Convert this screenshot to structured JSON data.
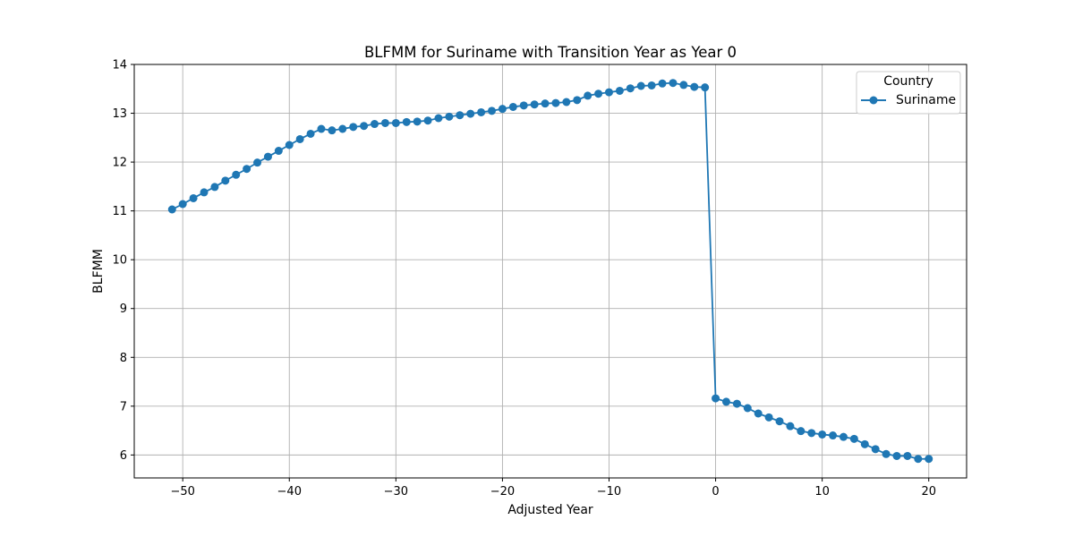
{
  "chart_data": {
    "type": "line",
    "title": "BLFMM for Suriname with Transition Year as Year 0",
    "xlabel": "Adjusted Year",
    "ylabel": "BLFMM",
    "xlim": [
      -54.55,
      23.55
    ],
    "ylim": [
      5.53,
      14.0
    ],
    "xticks": [
      -50,
      -40,
      -30,
      -20,
      -10,
      0,
      10,
      20
    ],
    "yticks": [
      6,
      7,
      8,
      9,
      10,
      11,
      12,
      13,
      14
    ],
    "grid": true,
    "legend": {
      "title": "Country",
      "position": "top-right"
    },
    "series": [
      {
        "name": "Suriname",
        "color": "#1f77b4",
        "marker": "circle",
        "x": [
          -51,
          -50,
          -49,
          -48,
          -47,
          -46,
          -45,
          -44,
          -43,
          -42,
          -41,
          -40,
          -39,
          -38,
          -37,
          -36,
          -35,
          -34,
          -33,
          -32,
          -31,
          -30,
          -29,
          -28,
          -27,
          -26,
          -25,
          -24,
          -23,
          -22,
          -21,
          -20,
          -19,
          -18,
          -17,
          -16,
          -15,
          -14,
          -13,
          -12,
          -11,
          -10,
          -9,
          -8,
          -7,
          -6,
          -5,
          -4,
          -3,
          -2,
          -1,
          0,
          1,
          2,
          3,
          4,
          5,
          6,
          7,
          8,
          9,
          10,
          11,
          12,
          13,
          14,
          15,
          16,
          17,
          18,
          19,
          20
        ],
        "y": [
          11.03,
          11.14,
          11.26,
          11.38,
          11.49,
          11.62,
          11.74,
          11.86,
          11.99,
          12.11,
          12.23,
          12.35,
          12.47,
          12.58,
          12.68,
          12.65,
          12.68,
          12.72,
          12.74,
          12.78,
          12.8,
          12.8,
          12.82,
          12.83,
          12.85,
          12.9,
          12.93,
          12.96,
          12.99,
          13.02,
          13.05,
          13.09,
          13.13,
          13.16,
          13.18,
          13.2,
          13.21,
          13.23,
          13.27,
          13.36,
          13.4,
          13.43,
          13.46,
          13.51,
          13.56,
          13.57,
          13.61,
          13.62,
          13.58,
          13.54,
          13.53,
          7.16,
          7.09,
          7.05,
          6.96,
          6.85,
          6.77,
          6.69,
          6.59,
          6.49,
          6.45,
          6.42,
          6.4,
          6.37,
          6.33,
          6.22,
          6.12,
          6.02,
          5.98,
          5.98,
          5.92,
          5.92
        ]
      }
    ]
  }
}
